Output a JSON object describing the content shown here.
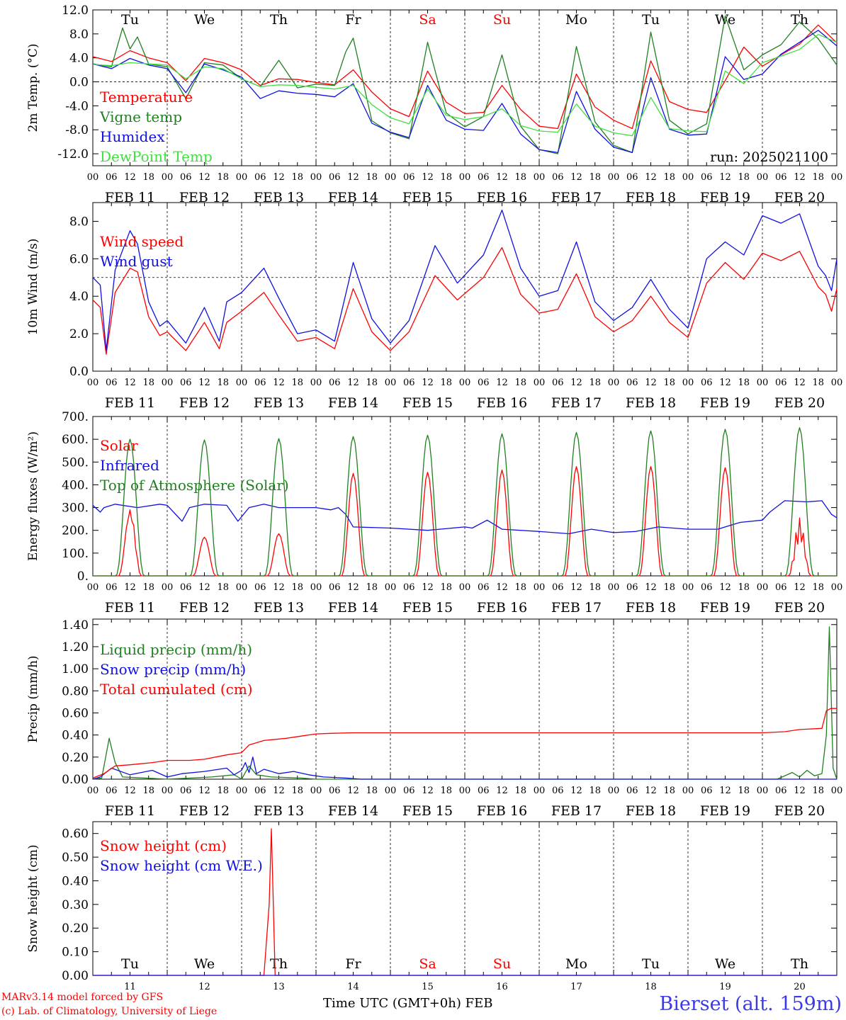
{
  "colors": {
    "red": "#ff0000",
    "green": "#208020",
    "blue": "#1010e0",
    "light_green": "#40e040",
    "axis": "#000000"
  },
  "day_headers": [
    {
      "label": "Tu",
      "color": "#000000"
    },
    {
      "label": "We",
      "color": "#000000"
    },
    {
      "label": "Th",
      "color": "#000000"
    },
    {
      "label": "Fr",
      "color": "#000000"
    },
    {
      "label": "Sa",
      "color": "#ff0000"
    },
    {
      "label": "Su",
      "color": "#ff0000"
    },
    {
      "label": "Mo",
      "color": "#000000"
    },
    {
      "label": "Tu",
      "color": "#000000"
    },
    {
      "label": "We",
      "color": "#000000"
    },
    {
      "label": "Th",
      "color": "#000000"
    }
  ],
  "date_labels": [
    "FEB 11",
    "FEB 12",
    "FEB 13",
    "FEB 14",
    "FEB 15",
    "FEB 16",
    "FEB 17",
    "FEB 18",
    "FEB 19",
    "FEB 20"
  ],
  "hour_labels": [
    "00",
    "06",
    "12",
    "18"
  ],
  "bottom_day_numbers": [
    "11",
    "12",
    "13",
    "14",
    "15",
    "16",
    "17",
    "18",
    "19",
    "20"
  ],
  "footer": {
    "credit_line1": "MARv3.14 model forced by GFS",
    "credit_line2": "(c) Lab. of Climatology, University of Liege",
    "xaxis_title": "Time UTC (GMT+0h) FEB",
    "station": "Bierset (alt. 159m)"
  },
  "chart_data": [
    {
      "type": "line",
      "ylabel": "2m Temp. (°C)",
      "ylim": [
        -14,
        12
      ],
      "yticks": [
        "12.0",
        "8.0",
        "4.0",
        "0.0",
        "-4.0",
        "-8.0",
        "-12.0"
      ],
      "ytick_values": [
        12,
        8,
        4,
        0,
        -4,
        -8,
        -12
      ],
      "annotation": "run: 2025021100",
      "reference_line": 0,
      "x_unit": "days since 2025-02-11 00 UTC",
      "series": [
        {
          "name": "Temperature",
          "color": "#ff0000",
          "x": [
            0,
            0.25,
            0.5,
            0.75,
            1,
            1.25,
            1.5,
            1.75,
            2,
            2.25,
            2.5,
            2.75,
            3,
            3.25,
            3.5,
            3.75,
            4,
            4.25,
            4.5,
            4.75,
            5,
            5.25,
            5.5,
            5.75,
            6,
            6.25,
            6.5,
            6.75,
            7,
            7.25,
            7.5,
            7.75,
            8,
            8.25,
            8.5,
            8.75,
            9,
            9.25,
            9.5,
            9.75,
            10
          ],
          "values": [
            4.2,
            3.4,
            5.2,
            4.0,
            3.2,
            0.2,
            3.9,
            3.2,
            2.0,
            -0.6,
            0.5,
            0.4,
            -0.1,
            -0.5,
            2.0,
            -1.7,
            -4.5,
            -5.8,
            1.8,
            -3.4,
            -5.3,
            -5.1,
            -0.6,
            -4.6,
            -7.4,
            -7.8,
            1.3,
            -4.2,
            -6.4,
            -7.8,
            3.5,
            -3.3,
            -4.6,
            -5.1,
            0.2,
            5.8,
            2.6,
            4.5,
            6.3,
            9.5,
            6.5
          ]
        },
        {
          "name": "Vigne temp",
          "color": "#208020",
          "x": [
            0,
            0.25,
            0.4,
            0.5,
            0.6,
            0.75,
            1,
            1.25,
            1.5,
            1.75,
            2,
            2.25,
            2.5,
            2.75,
            3,
            3.25,
            3.4,
            3.5,
            3.75,
            4,
            4.25,
            4.5,
            4.75,
            5,
            5.25,
            5.5,
            5.75,
            6,
            6.25,
            6.5,
            6.75,
            7,
            7.25,
            7.5,
            7.75,
            8,
            8.25,
            8.5,
            8.75,
            9,
            9.25,
            9.5,
            9.75,
            10
          ],
          "values": [
            3.0,
            2.5,
            9.0,
            5.5,
            7.5,
            3.0,
            2.5,
            -2.8,
            3.2,
            2.8,
            0.5,
            -0.8,
            3.6,
            -1.0,
            -0.4,
            -0.6,
            5.0,
            7.3,
            -6.5,
            -8.5,
            -9.5,
            6.6,
            -5.2,
            -7.5,
            -5.8,
            4.5,
            -7.4,
            -11.3,
            -12.0,
            5.9,
            -6.7,
            -10.6,
            -11.8,
            8.3,
            -6.4,
            -8.7,
            -7.0,
            11.0,
            2.0,
            4.5,
            6.2,
            10.0,
            7.2,
            2.8
          ]
        },
        {
          "name": "Humidex",
          "color": "#1010e0",
          "x": [
            0,
            0.25,
            0.5,
            0.75,
            1,
            1.25,
            1.5,
            1.75,
            2,
            2.25,
            2.5,
            2.75,
            3,
            3.25,
            3.5,
            3.75,
            4,
            4.25,
            4.5,
            4.75,
            5,
            5.25,
            5.5,
            5.75,
            6,
            6.25,
            6.5,
            6.75,
            7,
            7.25,
            7.5,
            7.75,
            8,
            8.25,
            8.5,
            8.75,
            9,
            9.25,
            9.5,
            9.75,
            10
          ],
          "values": [
            3.0,
            2.2,
            3.9,
            2.8,
            2.2,
            -1.8,
            3.0,
            2.0,
            0.8,
            -2.8,
            -1.5,
            -1.9,
            -2.1,
            -2.5,
            -0.3,
            -6.9,
            -8.4,
            -9.3,
            -0.6,
            -6.4,
            -7.9,
            -8.1,
            -3.6,
            -8.7,
            -11.3,
            -11.8,
            -1.6,
            -7.9,
            -10.9,
            -11.8,
            0.7,
            -7.9,
            -8.9,
            -8.7,
            4.2,
            0.4,
            1.3,
            4.6,
            6.6,
            8.6,
            6.0
          ]
        },
        {
          "name": "DewPoint Temp",
          "color": "#40e040",
          "x": [
            0,
            0.25,
            0.5,
            0.75,
            1,
            1.25,
            1.5,
            1.75,
            2,
            2.25,
            2.5,
            2.75,
            3,
            3.25,
            3.5,
            3.75,
            4,
            4.25,
            4.5,
            4.75,
            5,
            5.25,
            5.5,
            5.75,
            6,
            6.25,
            6.5,
            6.75,
            7,
            7.25,
            7.5,
            7.75,
            8,
            8.25,
            8.5,
            8.75,
            9,
            9.25,
            9.5,
            9.75,
            10
          ],
          "values": [
            2.9,
            2.7,
            3.2,
            3.0,
            2.8,
            0.5,
            2.5,
            2.2,
            0.5,
            -0.8,
            -0.5,
            -0.6,
            -0.9,
            -1.2,
            -0.6,
            -3.8,
            -6.0,
            -7.0,
            -1.2,
            -5.6,
            -6.3,
            -5.8,
            -4.5,
            -7.3,
            -8.2,
            -8.4,
            -3.7,
            -7.4,
            -8.5,
            -9.0,
            -2.6,
            -7.8,
            -8.2,
            -8.3,
            1.8,
            -0.3,
            3.2,
            4.3,
            5.4,
            7.9,
            6.6
          ]
        }
      ]
    },
    {
      "type": "line",
      "ylabel": "10m Wind (m/s)",
      "ylim": [
        0,
        9
      ],
      "yticks": [
        "8.0",
        "6.0",
        "4.0",
        "2.0",
        "0.0"
      ],
      "ytick_values": [
        8,
        6,
        4,
        2,
        0
      ],
      "reference_line": 5,
      "x_unit": "days since 2025-02-11 00 UTC",
      "series": [
        {
          "name": "Wind speed",
          "color": "#ff0000",
          "x": [
            0,
            0.1,
            0.18,
            0.3,
            0.5,
            0.6,
            0.75,
            0.9,
            1,
            1.25,
            1.5,
            1.7,
            1.8,
            2,
            2.3,
            2.5,
            2.75,
            3,
            3.25,
            3.5,
            3.75,
            4,
            4.25,
            4.6,
            4.9,
            5.25,
            5.5,
            5.75,
            6,
            6.25,
            6.5,
            6.75,
            7,
            7.25,
            7.5,
            7.75,
            8,
            8.25,
            8.5,
            8.75,
            9,
            9.25,
            9.5,
            9.75,
            9.85,
            9.93,
            10
          ],
          "values": [
            3.8,
            3.4,
            0.9,
            4.2,
            5.5,
            5.3,
            2.9,
            1.9,
            2.1,
            1.1,
            2.6,
            1.2,
            2.6,
            3.2,
            4.2,
            3.0,
            1.6,
            1.8,
            1.2,
            4.4,
            2.1,
            1.1,
            2.1,
            5.1,
            3.8,
            5.0,
            6.6,
            4.1,
            3.1,
            3.3,
            5.2,
            2.9,
            2.1,
            2.7,
            4.0,
            2.6,
            1.8,
            4.7,
            5.8,
            4.9,
            6.3,
            5.9,
            6.4,
            4.5,
            4.1,
            3.2,
            4.4
          ]
        },
        {
          "name": "Wind gust",
          "color": "#1010e0",
          "x": [
            0,
            0.1,
            0.18,
            0.3,
            0.5,
            0.6,
            0.75,
            0.9,
            1,
            1.25,
            1.5,
            1.7,
            1.8,
            2,
            2.3,
            2.5,
            2.75,
            3,
            3.25,
            3.5,
            3.75,
            4,
            4.25,
            4.6,
            4.9,
            5.25,
            5.5,
            5.75,
            6,
            6.25,
            6.5,
            6.75,
            7,
            7.25,
            7.5,
            7.75,
            8,
            8.25,
            8.5,
            8.75,
            9,
            9.25,
            9.5,
            9.75,
            9.85,
            9.93,
            10
          ],
          "values": [
            5.0,
            4.6,
            1.1,
            5.4,
            7.5,
            6.8,
            3.7,
            2.4,
            2.7,
            1.5,
            3.4,
            1.6,
            3.7,
            4.2,
            5.5,
            3.9,
            2.0,
            2.2,
            1.6,
            5.8,
            2.8,
            1.5,
            2.7,
            6.7,
            4.7,
            6.2,
            8.6,
            5.5,
            4.0,
            4.3,
            6.9,
            3.7,
            2.7,
            3.4,
            4.9,
            3.3,
            2.3,
            6.0,
            6.9,
            6.2,
            8.3,
            7.9,
            8.4,
            5.6,
            5.1,
            4.3,
            6.0
          ]
        }
      ]
    },
    {
      "type": "line",
      "ylabel": "Energy fluxes (W/m²)",
      "ylim": [
        0,
        700
      ],
      "yticks": [
        "700.",
        "600.",
        "500.",
        "400.",
        "300.",
        "200.",
        "100.",
        "0."
      ],
      "ytick_values": [
        700,
        600,
        500,
        400,
        300,
        200,
        100,
        0
      ],
      "x_unit": "days since 2025-02-11 00 UTC",
      "series": [
        {
          "name": "Solar",
          "color": "#ff0000",
          "daily_peaks": [
            320,
            170,
            185,
            450,
            455,
            465,
            480,
            480,
            475,
            255
          ]
        },
        {
          "name": "Infrared",
          "color": "#1010e0",
          "x": [
            0,
            0.1,
            0.15,
            0.3,
            0.6,
            0.9,
            1.0,
            1.2,
            1.3,
            1.5,
            1.8,
            1.95,
            2.1,
            2.3,
            2.5,
            2.8,
            3.0,
            3.2,
            3.3,
            3.4,
            3.5,
            4.0,
            4.5,
            5.0,
            5.1,
            5.3,
            5.5,
            6.0,
            6.4,
            6.7,
            7.0,
            7.3,
            7.6,
            8.0,
            8.4,
            8.7,
            9.0,
            9.1,
            9.3,
            9.6,
            9.8,
            9.93,
            10
          ],
          "values": [
            310,
            280,
            300,
            315,
            300,
            315,
            310,
            240,
            300,
            315,
            310,
            240,
            300,
            315,
            300,
            300,
            300,
            290,
            300,
            270,
            215,
            210,
            200,
            215,
            210,
            245,
            205,
            195,
            185,
            205,
            190,
            195,
            215,
            205,
            205,
            235,
            245,
            280,
            330,
            325,
            330,
            270,
            255
          ]
        },
        {
          "name": "Top of Atmosphere (Solar)",
          "color": "#208020",
          "daily_peaks": [
            600,
            597,
            603,
            612,
            618,
            624,
            630,
            637,
            644,
            651
          ]
        }
      ]
    },
    {
      "type": "line",
      "ylabel": "Precip (mm/h)",
      "ylim": [
        0,
        1.45
      ],
      "yticks": [
        "1.40",
        "1.20",
        "1.00",
        "0.80",
        "0.60",
        "0.40",
        "0.20",
        "0.00"
      ],
      "ytick_values": [
        1.4,
        1.2,
        1.0,
        0.8,
        0.6,
        0.4,
        0.2,
        0.0
      ],
      "x_unit": "days since 2025-02-11 00 UTC",
      "series": [
        {
          "name": "Liquid precip (mm/h)",
          "color": "#208020",
          "x": [
            0,
            0.12,
            0.22,
            0.3,
            0.4,
            0.7,
            1.0,
            1.6,
            1.9,
            2.0,
            2.1,
            2.2,
            2.4,
            2.8,
            3.0,
            9.2,
            9.4,
            9.5,
            9.6,
            9.7,
            9.8,
            9.86,
            9.9,
            9.95,
            10
          ],
          "values": [
            0,
            0.01,
            0.37,
            0.15,
            0.02,
            0.01,
            0,
            0.02,
            0.04,
            0,
            0.12,
            0.04,
            0.02,
            0.01,
            0,
            0,
            0.06,
            0.02,
            0.08,
            0.03,
            0.05,
            0.4,
            1.38,
            0.1,
            0
          ]
        },
        {
          "name": "Snow precip (mm/h)",
          "color": "#1010e0",
          "x": [
            0,
            0.1,
            0.25,
            0.5,
            0.8,
            1.0,
            1.2,
            1.5,
            1.8,
            1.9,
            2.0,
            2.05,
            2.1,
            2.15,
            2.2,
            2.3,
            2.5,
            2.7,
            2.9,
            3.1,
            3.4,
            3.6,
            4.0,
            10
          ],
          "values": [
            0,
            0.02,
            0.1,
            0.04,
            0.08,
            0.02,
            0.05,
            0.07,
            0.1,
            0.04,
            0.08,
            0.15,
            0.06,
            0.2,
            0.05,
            0.09,
            0.05,
            0.07,
            0.04,
            0.02,
            0.01,
            0,
            0,
            0
          ]
        },
        {
          "name": "Total cumulated (cm)",
          "color": "#ff0000",
          "x": [
            0,
            0.15,
            0.3,
            0.5,
            0.8,
            1.0,
            1.3,
            1.5,
            1.8,
            2.0,
            2.1,
            2.3,
            2.6,
            2.8,
            3.0,
            3.2,
            3.5,
            4.0,
            6.0,
            8.0,
            9.0,
            9.3,
            9.5,
            9.8,
            9.86,
            9.92,
            10
          ],
          "values": [
            0.01,
            0.05,
            0.12,
            0.13,
            0.15,
            0.17,
            0.17,
            0.18,
            0.22,
            0.24,
            0.31,
            0.35,
            0.37,
            0.39,
            0.41,
            0.415,
            0.42,
            0.42,
            0.42,
            0.42,
            0.42,
            0.43,
            0.45,
            0.46,
            0.62,
            0.64,
            0.64
          ]
        }
      ]
    },
    {
      "type": "line",
      "ylabel": "Snow height (cm)",
      "ylim": [
        0,
        0.65
      ],
      "yticks": [
        "0.60",
        "0.50",
        "0.40",
        "0.30",
        "0.20",
        "0.10",
        "0.00"
      ],
      "ytick_values": [
        0.6,
        0.5,
        0.4,
        0.3,
        0.2,
        0.1,
        0.0
      ],
      "x_unit": "days since 2025-02-11 00 UTC",
      "series": [
        {
          "name": "Snow height (cm)",
          "color": "#ff0000",
          "x": [
            0,
            2.3,
            2.37,
            2.4,
            2.45,
            10
          ],
          "values": [
            0,
            0,
            0.3,
            0.62,
            0,
            0
          ]
        },
        {
          "name": "Snow height (cm W.E.)",
          "color": "#1010e0",
          "x": [
            0,
            10
          ],
          "values": [
            0,
            0
          ]
        }
      ]
    }
  ]
}
